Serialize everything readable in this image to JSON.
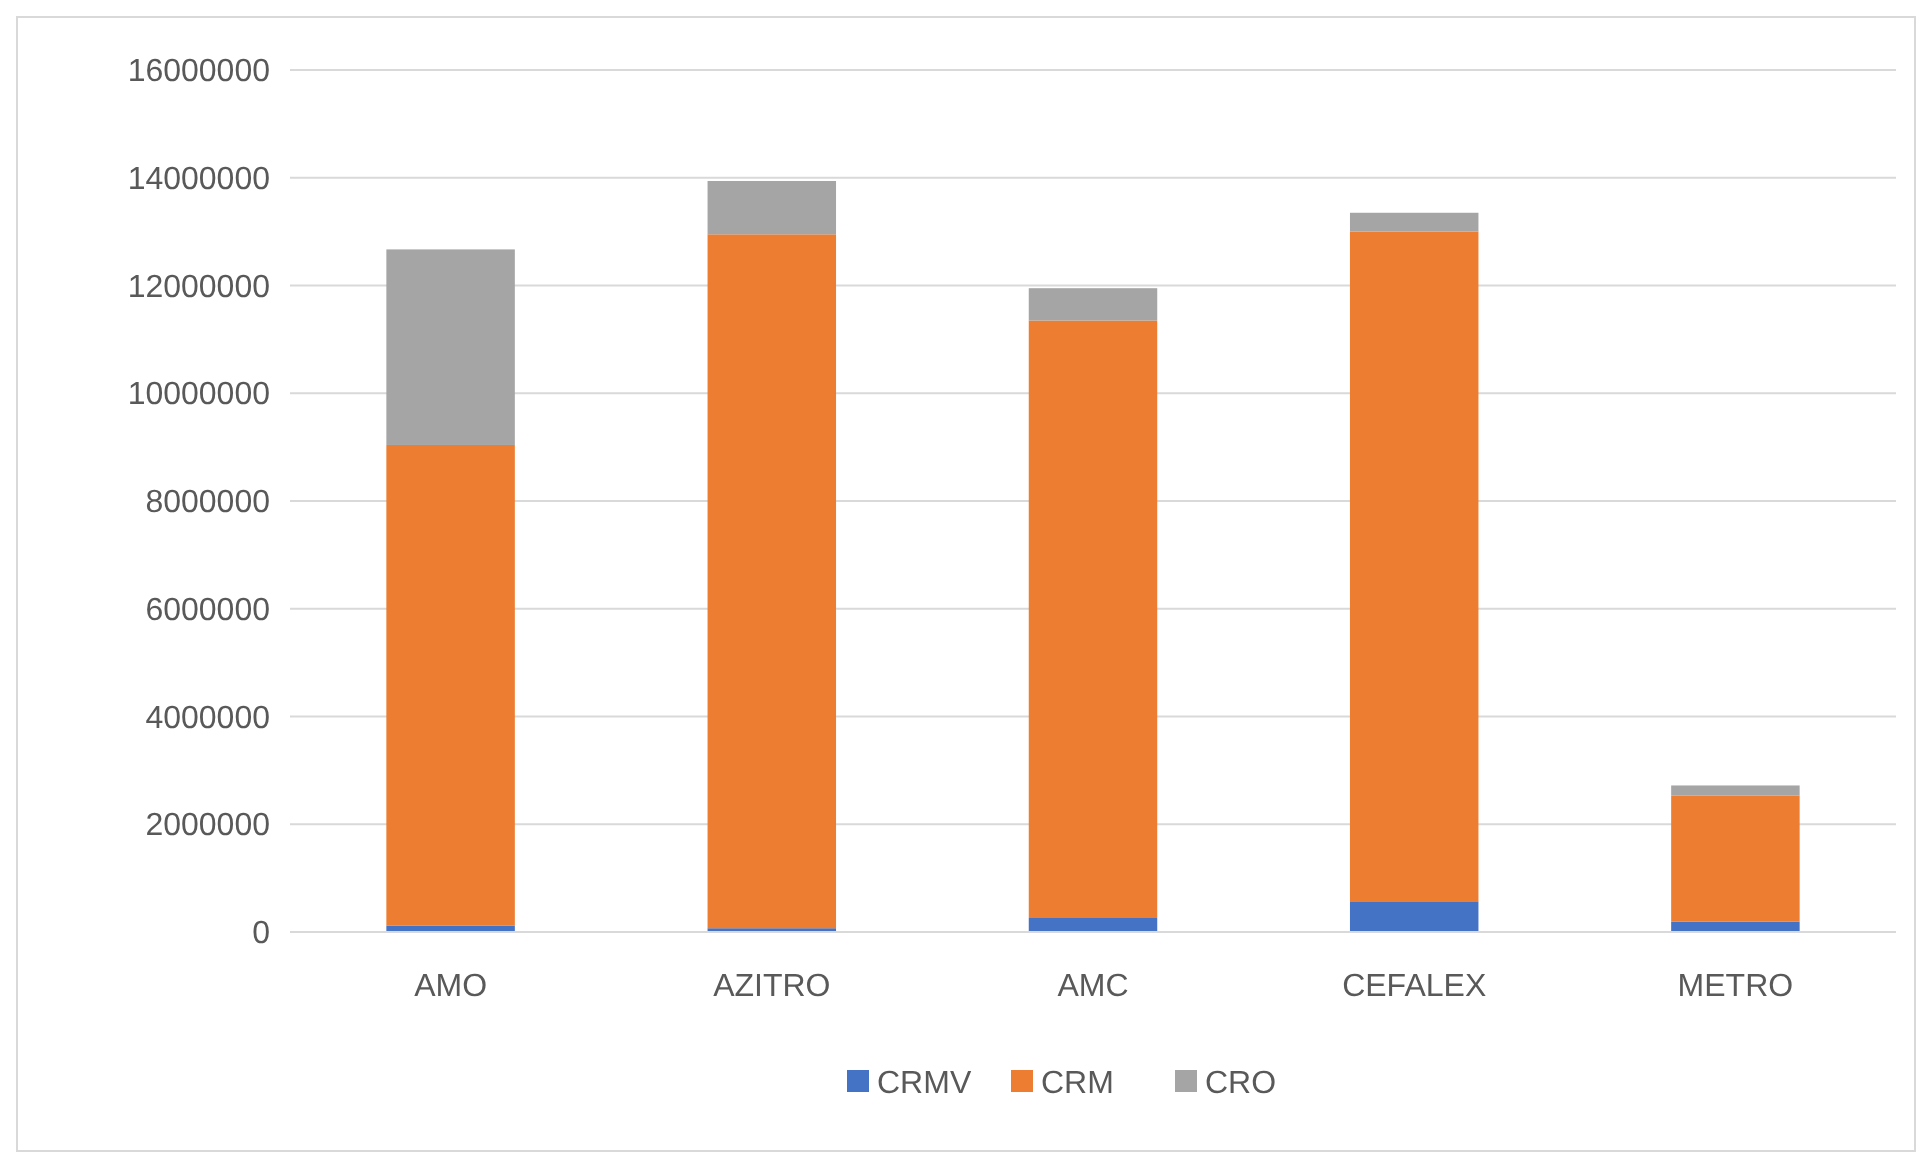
{
  "chart_data": {
    "type": "bar",
    "stacked": true,
    "categories": [
      "AMO",
      "AZITRO",
      "AMC",
      "CEFALEX",
      "METRO"
    ],
    "series": [
      {
        "name": "CRMV",
        "color": "#4472c4",
        "values": [
          120000,
          70000,
          260000,
          570000,
          190000
        ]
      },
      {
        "name": "CRM",
        "color": "#ed7d31",
        "values": [
          8920000,
          12880000,
          11090000,
          12430000,
          2340000
        ]
      },
      {
        "name": "CRO",
        "color": "#a5a5a5",
        "values": [
          3630000,
          990000,
          600000,
          350000,
          190000
        ]
      }
    ],
    "ylim": [
      0,
      16000000
    ],
    "yticks": [
      0,
      2000000,
      4000000,
      6000000,
      8000000,
      10000000,
      12000000,
      14000000,
      16000000
    ],
    "grid": "y",
    "legend": "bottom"
  }
}
